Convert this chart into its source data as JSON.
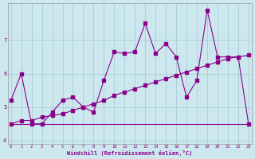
{
  "x": [
    0,
    1,
    2,
    3,
    4,
    5,
    6,
    7,
    8,
    9,
    10,
    11,
    12,
    13,
    14,
    15,
    16,
    17,
    18,
    19,
    20,
    21,
    22,
    23
  ],
  "line_jagged": [
    5.2,
    6.0,
    4.5,
    4.5,
    4.85,
    5.2,
    5.3,
    5.0,
    4.85,
    5.8,
    6.65,
    6.6,
    6.65,
    7.5,
    6.6,
    6.9,
    6.5,
    5.3,
    5.8,
    7.9,
    6.5,
    6.5,
    6.5,
    4.5
  ],
  "line_rising": [
    4.5,
    4.6,
    4.6,
    4.7,
    4.75,
    4.8,
    4.9,
    5.0,
    5.1,
    5.2,
    5.35,
    5.45,
    5.55,
    5.65,
    5.75,
    5.85,
    5.95,
    6.05,
    6.15,
    6.25,
    6.35,
    6.45,
    6.5,
    6.55
  ],
  "line_flat": [
    4.5,
    4.5,
    4.5,
    4.5,
    4.5,
    4.5,
    4.5,
    4.5,
    4.5,
    4.5,
    4.5,
    4.5,
    4.5,
    4.5,
    4.5,
    4.5,
    4.5,
    4.5,
    4.5,
    4.5,
    4.5,
    4.5,
    4.5,
    4.5
  ],
  "line_color": "#8b008b",
  "bg_color": "#cce8ee",
  "grid_color": "#a8cdd4",
  "xlabel": "Windchill (Refroidissement éolien,°C)",
  "xlim_min": -0.3,
  "xlim_max": 23.3,
  "ylim_min": 3.9,
  "ylim_max": 8.1,
  "yticks": [
    4,
    5,
    6,
    7
  ],
  "xticks": [
    0,
    1,
    2,
    3,
    4,
    5,
    6,
    7,
    8,
    9,
    10,
    11,
    12,
    13,
    14,
    15,
    16,
    17,
    18,
    19,
    20,
    21,
    22,
    23
  ]
}
